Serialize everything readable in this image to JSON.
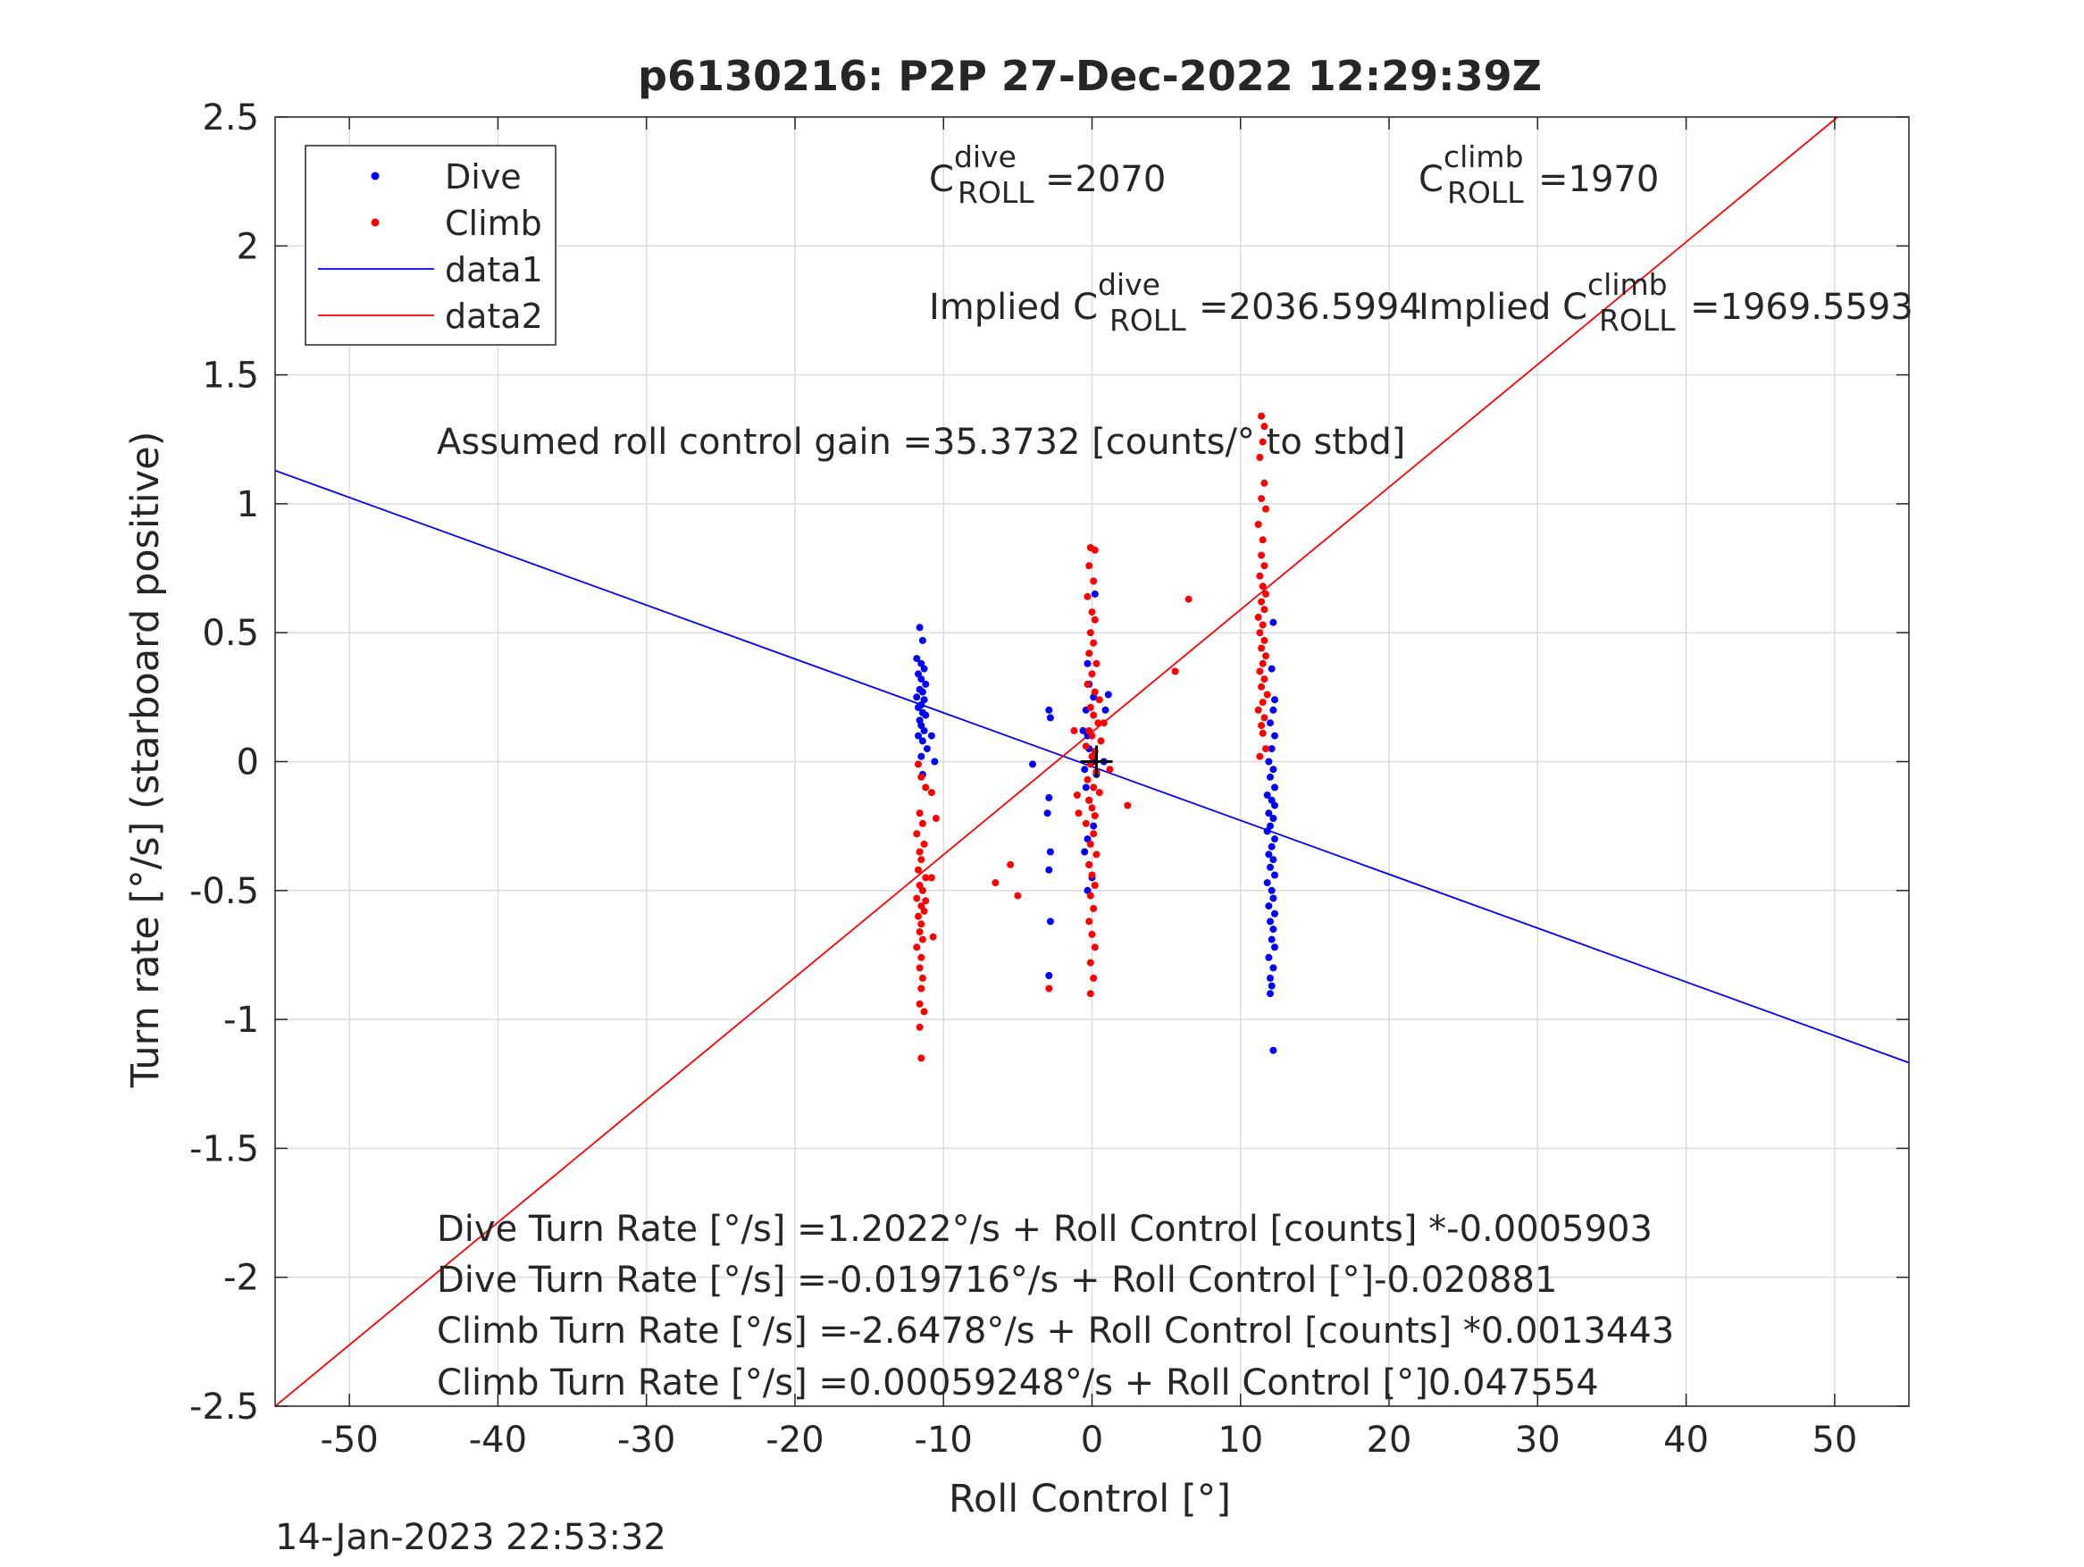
{
  "chart_data": {
    "type": "scatter",
    "title": "p6130216: P2P 27-Dec-2022 12:29:39Z",
    "xlabel": "Roll Control [°]",
    "ylabel": "Turn rate [°/s] (starboard positive)",
    "xlim": [
      -55,
      55
    ],
    "ylim": [
      -2.5,
      2.5
    ],
    "xticks": [
      -50,
      -40,
      -30,
      -20,
      -10,
      0,
      10,
      20,
      30,
      40,
      50
    ],
    "xtick_labels": [
      "-50",
      "-40",
      "-30",
      "-20",
      "-10",
      "0",
      "10",
      "20",
      "30",
      "40",
      "50"
    ],
    "yticks": [
      2.5,
      2,
      1.5,
      1,
      0.5,
      0,
      -0.5,
      -1,
      -1.5,
      -2,
      -2.5
    ],
    "ytick_labels": [
      "2.5",
      "2",
      "1.5",
      "1",
      "0.5",
      "0",
      "-0.5",
      "-1",
      "-1.5",
      "-2",
      "-2.5"
    ],
    "grid": true,
    "legend_position": "top-left",
    "legend": [
      {
        "label": "Dive",
        "kind": "dot",
        "color": "#0000ff"
      },
      {
        "label": "Climb",
        "kind": "dot",
        "color": "#ff0000"
      },
      {
        "label": "data1",
        "kind": "line",
        "color": "#0000ff"
      },
      {
        "label": "data2",
        "kind": "line",
        "color": "#ff0000"
      }
    ],
    "colors": {
      "dive": "#0000ff",
      "climb": "#ff0000",
      "grid": "#dcdcdc",
      "axis": "#262626"
    },
    "lines": [
      {
        "name": "data1",
        "color": "#0000ff",
        "x": [
          -55,
          55
        ],
        "y": [
          1.1289,
          -1.1678
        ]
      },
      {
        "name": "data2",
        "color": "#ff0000",
        "x": [
          -55,
          50.2
        ],
        "y": [
          -2.5,
          2.5
        ]
      }
    ],
    "series": [
      {
        "name": "Dive",
        "color": "#0000ff",
        "points": [
          [
            -11.6,
            0.52
          ],
          [
            -11.4,
            0.47
          ],
          [
            -11.8,
            0.4
          ],
          [
            -11.5,
            0.38
          ],
          [
            -11.3,
            0.36
          ],
          [
            -11.7,
            0.34
          ],
          [
            -11.5,
            0.32
          ],
          [
            -11.2,
            0.3
          ],
          [
            -11.6,
            0.28
          ],
          [
            -11.4,
            0.27
          ],
          [
            -11.8,
            0.25
          ],
          [
            -11.3,
            0.24
          ],
          [
            -11.5,
            0.22
          ],
          [
            -11.7,
            0.21
          ],
          [
            -11.4,
            0.19
          ],
          [
            -11.2,
            0.18
          ],
          [
            -11.6,
            0.16
          ],
          [
            -11.5,
            0.14
          ],
          [
            -11.3,
            0.12
          ],
          [
            -11.7,
            0.1
          ],
          [
            -11.4,
            0.08
          ],
          [
            -11.1,
            0.05
          ],
          [
            -11.5,
            0.02
          ],
          [
            -10.8,
            0.1
          ],
          [
            -10.6,
            0.0
          ],
          [
            -11.4,
            -0.05
          ],
          [
            -2.9,
            0.2
          ],
          [
            -2.8,
            0.17
          ],
          [
            -4.0,
            -0.01
          ],
          [
            -2.9,
            -0.14
          ],
          [
            -3.0,
            -0.2
          ],
          [
            -2.8,
            -0.35
          ],
          [
            -2.9,
            -0.42
          ],
          [
            -2.8,
            -0.62
          ],
          [
            -2.9,
            -0.83
          ],
          [
            -0.6,
            0.12
          ],
          [
            -0.3,
            0.38
          ],
          [
            -0.2,
            0.3
          ],
          [
            0.2,
            0.65
          ],
          [
            0.1,
            0.25
          ],
          [
            -0.4,
            0.2
          ],
          [
            -0.3,
            0.1
          ],
          [
            -0.2,
            0.05
          ],
          [
            0.1,
            0.0
          ],
          [
            -0.5,
            -0.03
          ],
          [
            0.3,
            -0.05
          ],
          [
            -0.4,
            -0.1
          ],
          [
            -0.2,
            -0.15
          ],
          [
            0.1,
            -0.25
          ],
          [
            -0.3,
            -0.3
          ],
          [
            -0.5,
            -0.35
          ],
          [
            -0.2,
            -0.4
          ],
          [
            0.0,
            -0.45
          ],
          [
            -0.3,
            -0.5
          ],
          [
            0.8,
            0.0
          ],
          [
            1.1,
            0.26
          ],
          [
            0.9,
            0.2
          ],
          [
            12.2,
            0.54
          ],
          [
            12.1,
            0.36
          ],
          [
            12.3,
            0.24
          ],
          [
            12.2,
            0.2
          ],
          [
            12.0,
            0.15
          ],
          [
            12.3,
            0.1
          ],
          [
            12.1,
            0.05
          ],
          [
            11.9,
            0.0
          ],
          [
            12.2,
            -0.03
          ],
          [
            12.0,
            -0.06
          ],
          [
            12.3,
            -0.1
          ],
          [
            11.8,
            -0.13
          ],
          [
            12.1,
            -0.15
          ],
          [
            12.3,
            -0.17
          ],
          [
            11.9,
            -0.2
          ],
          [
            12.2,
            -0.22
          ],
          [
            12.0,
            -0.25
          ],
          [
            11.8,
            -0.27
          ],
          [
            12.3,
            -0.3
          ],
          [
            12.1,
            -0.33
          ],
          [
            11.9,
            -0.36
          ],
          [
            12.2,
            -0.38
          ],
          [
            12.0,
            -0.41
          ],
          [
            12.3,
            -0.44
          ],
          [
            11.8,
            -0.47
          ],
          [
            12.1,
            -0.5
          ],
          [
            12.2,
            -0.53
          ],
          [
            11.9,
            -0.56
          ],
          [
            12.3,
            -0.59
          ],
          [
            12.0,
            -0.62
          ],
          [
            12.2,
            -0.65
          ],
          [
            12.1,
            -0.69
          ],
          [
            12.3,
            -0.72
          ],
          [
            11.9,
            -0.76
          ],
          [
            12.2,
            -0.8
          ],
          [
            12.0,
            -0.84
          ],
          [
            12.1,
            -0.87
          ],
          [
            12.0,
            -0.9
          ],
          [
            12.2,
            -1.12
          ]
        ]
      },
      {
        "name": "Climb",
        "color": "#ff0000",
        "points": [
          [
            -11.7,
            -0.01
          ],
          [
            -11.5,
            -0.06
          ],
          [
            -11.2,
            -0.1
          ],
          [
            -10.8,
            -0.12
          ],
          [
            -11.6,
            -0.2
          ],
          [
            -11.4,
            -0.24
          ],
          [
            -11.8,
            -0.28
          ],
          [
            -11.3,
            -0.32
          ],
          [
            -11.6,
            -0.35
          ],
          [
            -11.5,
            -0.38
          ],
          [
            -11.7,
            -0.42
          ],
          [
            -11.2,
            -0.45
          ],
          [
            -11.6,
            -0.48
          ],
          [
            -11.4,
            -0.5
          ],
          [
            -11.8,
            -0.53
          ],
          [
            -11.5,
            -0.56
          ],
          [
            -11.3,
            -0.58
          ],
          [
            -11.7,
            -0.6
          ],
          [
            -11.5,
            -0.63
          ],
          [
            -11.6,
            -0.66
          ],
          [
            -11.4,
            -0.69
          ],
          [
            -11.8,
            -0.72
          ],
          [
            -11.5,
            -0.76
          ],
          [
            -11.6,
            -0.8
          ],
          [
            -11.4,
            -0.84
          ],
          [
            -11.5,
            -0.88
          ],
          [
            -11.6,
            -0.94
          ],
          [
            -11.3,
            -0.97
          ],
          [
            -11.6,
            -1.03
          ],
          [
            -11.5,
            -1.15
          ],
          [
            -10.5,
            -0.22
          ],
          [
            -10.8,
            -0.45
          ],
          [
            -10.7,
            -0.68
          ],
          [
            -11.2,
            -0.54
          ],
          [
            -6.5,
            -0.47
          ],
          [
            -5.5,
            -0.4
          ],
          [
            -5.0,
            -0.52
          ],
          [
            -2.9,
            -0.88
          ],
          [
            -0.1,
            0.83
          ],
          [
            0.2,
            0.82
          ],
          [
            -0.2,
            0.76
          ],
          [
            0.1,
            0.7
          ],
          [
            -0.3,
            0.64
          ],
          [
            0.0,
            0.58
          ],
          [
            0.2,
            0.55
          ],
          [
            -0.1,
            0.5
          ],
          [
            0.1,
            0.46
          ],
          [
            -0.2,
            0.42
          ],
          [
            0.3,
            0.38
          ],
          [
            0.0,
            0.34
          ],
          [
            -0.3,
            0.3
          ],
          [
            0.2,
            0.27
          ],
          [
            0.5,
            0.24
          ],
          [
            -0.1,
            0.21
          ],
          [
            0.1,
            0.18
          ],
          [
            0.4,
            0.15
          ],
          [
            -0.2,
            0.12
          ],
          [
            0.0,
            0.1
          ],
          [
            0.6,
            0.08
          ],
          [
            -0.4,
            0.06
          ],
          [
            0.2,
            0.04
          ],
          [
            0.0,
            0.02
          ],
          [
            -0.1,
            -0.01
          ],
          [
            0.3,
            -0.04
          ],
          [
            -0.3,
            -0.07
          ],
          [
            0.1,
            -0.1
          ],
          [
            0.5,
            -0.12
          ],
          [
            -0.2,
            -0.15
          ],
          [
            0.0,
            -0.18
          ],
          [
            0.2,
            -0.21
          ],
          [
            -0.4,
            -0.24
          ],
          [
            0.1,
            -0.28
          ],
          [
            -0.1,
            -0.32
          ],
          [
            0.3,
            -0.36
          ],
          [
            -0.2,
            -0.4
          ],
          [
            0.0,
            -0.44
          ],
          [
            0.2,
            -0.48
          ],
          [
            -0.1,
            -0.52
          ],
          [
            0.1,
            -0.57
          ],
          [
            -0.2,
            -0.62
          ],
          [
            0.0,
            -0.67
          ],
          [
            0.2,
            -0.72
          ],
          [
            -0.1,
            -0.78
          ],
          [
            0.1,
            -0.84
          ],
          [
            -0.1,
            -0.9
          ],
          [
            -1.2,
            0.12
          ],
          [
            -0.9,
            -0.2
          ],
          [
            -1.0,
            -0.13
          ],
          [
            0.8,
            0.15
          ],
          [
            2.4,
            -0.17
          ],
          [
            1.2,
            -0.03
          ],
          [
            5.6,
            0.35
          ],
          [
            6.5,
            0.63
          ],
          [
            11.4,
            1.34
          ],
          [
            11.6,
            1.3
          ],
          [
            11.5,
            1.24
          ],
          [
            11.3,
            1.18
          ],
          [
            11.6,
            1.08
          ],
          [
            11.4,
            1.02
          ],
          [
            11.7,
            0.98
          ],
          [
            11.2,
            0.92
          ],
          [
            11.5,
            0.86
          ],
          [
            11.4,
            0.8
          ],
          [
            11.6,
            0.76
          ],
          [
            11.3,
            0.72
          ],
          [
            11.5,
            0.68
          ],
          [
            11.7,
            0.65
          ],
          [
            11.4,
            0.62
          ],
          [
            11.6,
            0.59
          ],
          [
            11.2,
            0.56
          ],
          [
            11.5,
            0.53
          ],
          [
            11.3,
            0.5
          ],
          [
            11.6,
            0.47
          ],
          [
            11.4,
            0.44
          ],
          [
            11.7,
            0.41
          ],
          [
            11.5,
            0.38
          ],
          [
            11.3,
            0.35
          ],
          [
            11.6,
            0.32
          ],
          [
            11.4,
            0.29
          ],
          [
            11.8,
            0.26
          ],
          [
            11.5,
            0.23
          ],
          [
            11.2,
            0.2
          ],
          [
            11.6,
            0.17
          ],
          [
            11.4,
            0.14
          ],
          [
            11.5,
            0.11
          ],
          [
            11.7,
            0.05
          ],
          [
            11.3,
            0.02
          ]
        ]
      }
    ],
    "annotations": {
      "c_roll_dive": {
        "prefix": "C",
        "sup": "dive",
        "sub": "ROLL",
        "value": "=2070"
      },
      "c_roll_climb": {
        "prefix": "C",
        "sup": "climb",
        "sub": "ROLL",
        "value": "=1970"
      },
      "implied_dive": {
        "prefix": "Implied C",
        "sup": "dive",
        "sub": "ROLL",
        "value": "=2036.5994"
      },
      "implied_climb": {
        "prefix": "Implied C",
        "sup": "climb",
        "sub": "ROLL",
        "value": "=1969.5593"
      },
      "gain": "Assumed roll control gain =35.3732 [counts/° to stbd]",
      "fit_lines": [
        "Dive Turn Rate [°/s] =1.2022°/s + Roll Control [counts] *-0.0005903",
        "Dive Turn Rate [°/s] =-0.019716°/s + Roll Control [°]-0.020881",
        "Climb Turn Rate [°/s] =-2.6478°/s + Roll Control [counts] *0.0013443",
        "Climb Turn Rate [°/s] =0.00059248°/s + Roll Control [°]0.047554"
      ]
    },
    "center_marker": {
      "x": 0.3,
      "y": 0.0
    }
  },
  "footer": {
    "timestamp": "14-Jan-2023 22:53:32"
  }
}
